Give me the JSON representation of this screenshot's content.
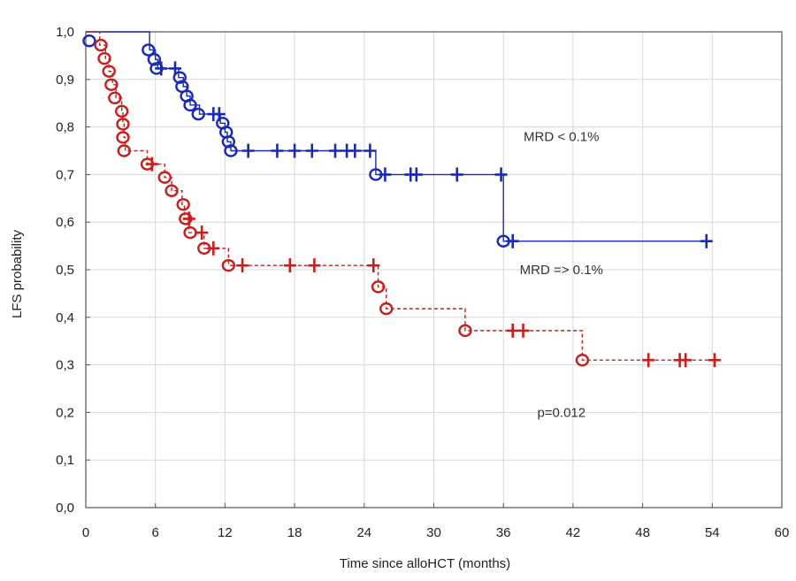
{
  "chart_data": {
    "type": "line",
    "subtype": "kaplan-meier",
    "title": "",
    "xlabel": "Time since alloHCT (months)",
    "ylabel": "LFS probability",
    "xlim": [
      0,
      60
    ],
    "ylim": [
      0,
      1
    ],
    "x_ticks": [
      0,
      6,
      12,
      18,
      24,
      30,
      36,
      42,
      48,
      54,
      60
    ],
    "x_tick_labels": [
      "0",
      "6",
      "12",
      "18",
      "24",
      "30",
      "36",
      "42",
      "48",
      "54",
      "60"
    ],
    "y_ticks": [
      0,
      0.1,
      0.2,
      0.3,
      0.4,
      0.5,
      0.6,
      0.7,
      0.8,
      0.9,
      1.0
    ],
    "y_tick_labels": [
      "0,0",
      "0,1",
      "0,2",
      "0,3",
      "0,4",
      "0,5",
      "0,6",
      "0,7",
      "0,8",
      "0,9",
      "1,0"
    ],
    "grid": true,
    "annotations": [
      {
        "text": "MRD < 0.1%",
        "x": 41,
        "y": 0.78
      },
      {
        "text": "MRD => 0.1%",
        "x": 41,
        "y": 0.5
      },
      {
        "text": "p=0.012",
        "x": 41,
        "y": 0.2
      }
    ],
    "series": [
      {
        "name": "MRD < 0.1%",
        "color": "#1a2ab5",
        "line_style": "solid",
        "steps": [
          [
            0,
            1.0
          ],
          [
            5.5,
            0.962
          ],
          [
            6.0,
            0.942
          ],
          [
            6.2,
            0.923
          ],
          [
            8.0,
            0.904
          ],
          [
            8.4,
            0.885
          ],
          [
            8.7,
            0.865
          ],
          [
            9.0,
            0.846
          ],
          [
            9.8,
            0.827
          ],
          [
            11.6,
            0.808
          ],
          [
            12.0,
            0.789
          ],
          [
            12.2,
            0.769
          ],
          [
            12.5,
            0.75
          ],
          [
            25.0,
            0.7
          ],
          [
            36.0,
            0.56
          ],
          [
            53.5,
            0.56
          ]
        ],
        "events": [
          [
            0.3,
            0.981
          ],
          [
            5.4,
            0.962
          ],
          [
            5.9,
            0.942
          ],
          [
            6.1,
            0.923
          ],
          [
            8.1,
            0.904
          ],
          [
            8.3,
            0.885
          ],
          [
            8.7,
            0.865
          ],
          [
            9.0,
            0.846
          ],
          [
            9.7,
            0.827
          ],
          [
            11.8,
            0.808
          ],
          [
            12.1,
            0.789
          ],
          [
            12.3,
            0.769
          ],
          [
            12.5,
            0.75
          ],
          [
            25.0,
            0.7
          ],
          [
            36.0,
            0.56
          ]
        ],
        "censored": [
          [
            6.5,
            0.923
          ],
          [
            7.7,
            0.923
          ],
          [
            11.0,
            0.827
          ],
          [
            11.5,
            0.827
          ],
          [
            14.0,
            0.75
          ],
          [
            16.5,
            0.75
          ],
          [
            18.0,
            0.75
          ],
          [
            19.5,
            0.75
          ],
          [
            21.5,
            0.75
          ],
          [
            22.5,
            0.75
          ],
          [
            23.2,
            0.75
          ],
          [
            24.5,
            0.75
          ],
          [
            25.8,
            0.7
          ],
          [
            28.0,
            0.7
          ],
          [
            28.5,
            0.7
          ],
          [
            32.0,
            0.7
          ],
          [
            35.8,
            0.7
          ],
          [
            36.8,
            0.56
          ],
          [
            53.5,
            0.56
          ]
        ]
      },
      {
        "name": "MRD => 0.1%",
        "color": "#c81e1e",
        "line_style": "dashed",
        "steps": [
          [
            0,
            1.0
          ],
          [
            1.2,
            0.972
          ],
          [
            1.7,
            0.944
          ],
          [
            2.0,
            0.917
          ],
          [
            2.3,
            0.889
          ],
          [
            2.6,
            0.861
          ],
          [
            3.1,
            0.833
          ],
          [
            3.2,
            0.806
          ],
          [
            3.3,
            0.778
          ],
          [
            3.4,
            0.75
          ],
          [
            5.3,
            0.722
          ],
          [
            6.8,
            0.694
          ],
          [
            7.4,
            0.666
          ],
          [
            8.3,
            0.637
          ],
          [
            8.5,
            0.607
          ],
          [
            8.9,
            0.578
          ],
          [
            10.2,
            0.545
          ],
          [
            12.3,
            0.509
          ],
          [
            25.2,
            0.464
          ],
          [
            25.9,
            0.418
          ],
          [
            32.7,
            0.372
          ],
          [
            42.8,
            0.31
          ],
          [
            54.2,
            0.31
          ]
        ],
        "events": [
          [
            1.3,
            0.972
          ],
          [
            1.6,
            0.944
          ],
          [
            2.0,
            0.917
          ],
          [
            2.2,
            0.889
          ],
          [
            2.5,
            0.861
          ],
          [
            3.1,
            0.833
          ],
          [
            3.2,
            0.806
          ],
          [
            3.2,
            0.778
          ],
          [
            3.3,
            0.75
          ],
          [
            5.3,
            0.722
          ],
          [
            6.8,
            0.694
          ],
          [
            7.4,
            0.666
          ],
          [
            8.4,
            0.637
          ],
          [
            8.6,
            0.607
          ],
          [
            9.0,
            0.578
          ],
          [
            10.2,
            0.545
          ],
          [
            12.3,
            0.509
          ],
          [
            25.2,
            0.464
          ],
          [
            25.9,
            0.418
          ],
          [
            32.7,
            0.372
          ],
          [
            42.8,
            0.31
          ]
        ],
        "censored": [
          [
            5.7,
            0.722
          ],
          [
            8.9,
            0.607
          ],
          [
            10.0,
            0.578
          ],
          [
            11.0,
            0.545
          ],
          [
            13.5,
            0.509
          ],
          [
            17.6,
            0.509
          ],
          [
            19.7,
            0.509
          ],
          [
            24.8,
            0.509
          ],
          [
            36.8,
            0.372
          ],
          [
            37.7,
            0.372
          ],
          [
            48.5,
            0.31
          ],
          [
            51.2,
            0.31
          ],
          [
            51.7,
            0.31
          ],
          [
            54.2,
            0.31
          ]
        ]
      }
    ]
  }
}
